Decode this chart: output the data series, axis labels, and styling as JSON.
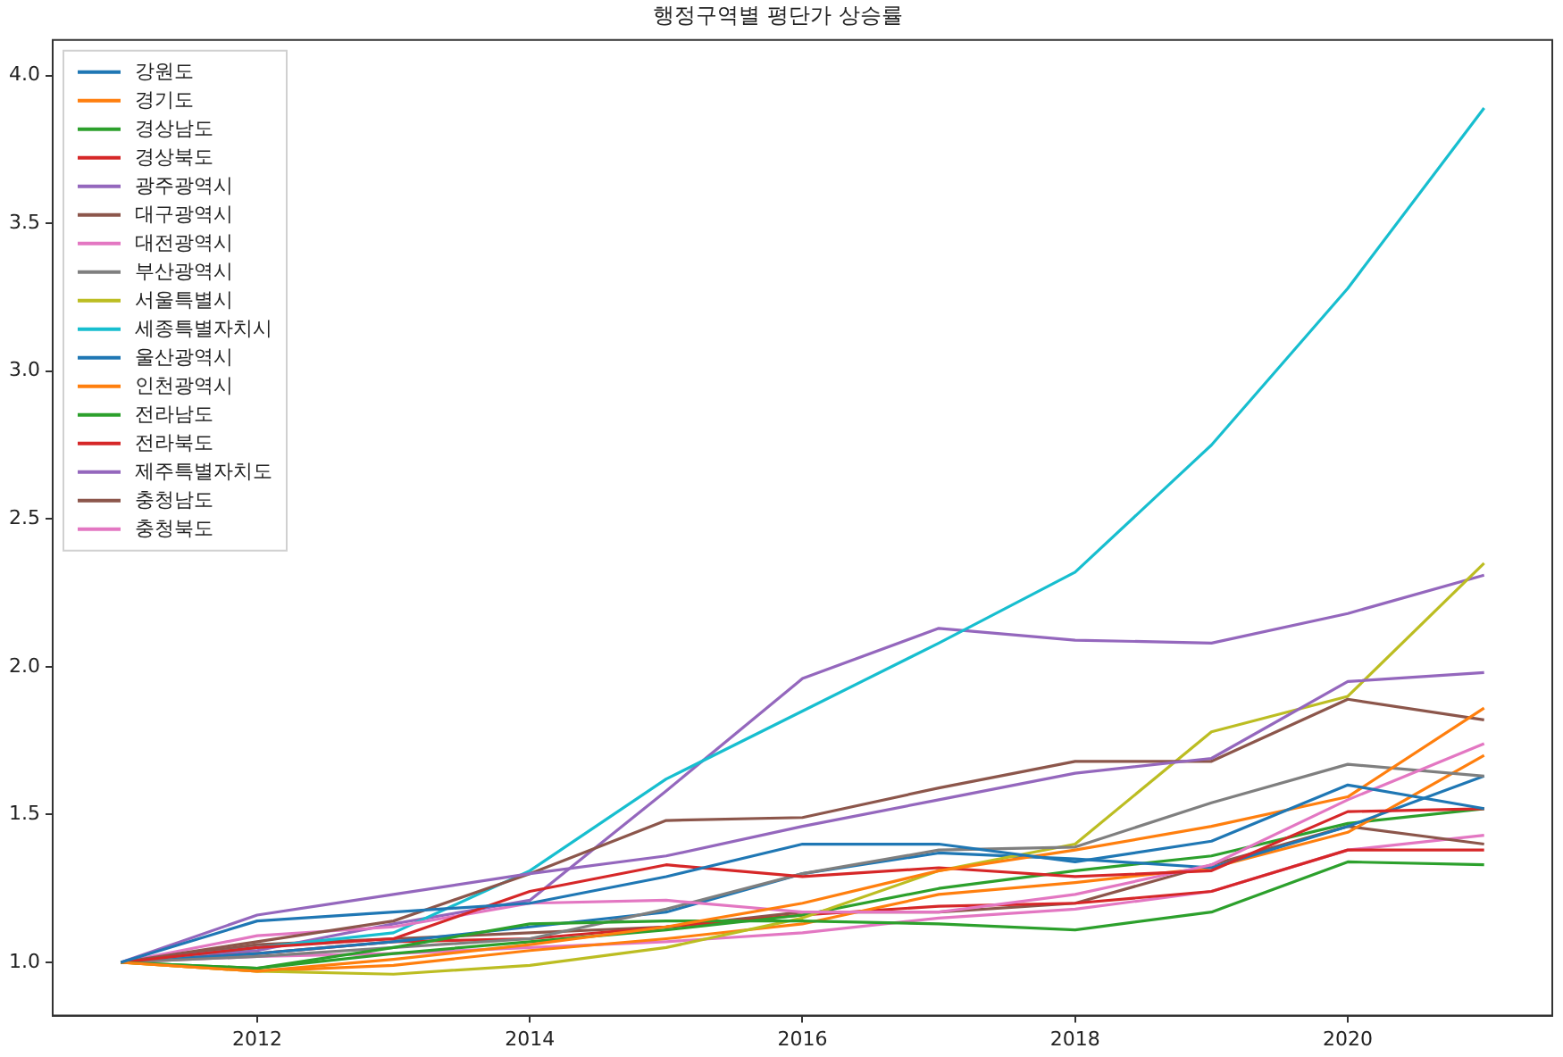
{
  "chart_data": {
    "type": "line",
    "title": "행정구역별 평단가 상승률",
    "x": [
      2011,
      2012,
      2013,
      2014,
      2015,
      2016,
      2017,
      2018,
      2019,
      2020,
      2021
    ],
    "xlim": [
      2010.5,
      2021.5
    ],
    "xticks": [
      2012,
      2014,
      2016,
      2018,
      2020
    ],
    "ylim": [
      0.82,
      4.12
    ],
    "yticks": [
      {
        "value": 1,
        "label": "1.0"
      },
      {
        "value": 1.5,
        "label": "1.5"
      },
      {
        "value": 2,
        "label": "2.0"
      },
      {
        "value": 2.5,
        "label": "2.5"
      },
      {
        "value": 3,
        "label": "3.0"
      },
      {
        "value": 3.5,
        "label": "3.5"
      },
      {
        "value": 4,
        "label": "4.0"
      }
    ],
    "grid": false,
    "legend": "top left",
    "marker": "none",
    "line_style": "solid",
    "series": [
      {
        "name": "강원도",
        "color": "#1f77b4",
        "values": [
          1.0,
          1.14,
          1.17,
          1.2,
          1.29,
          1.4,
          1.4,
          1.34,
          1.41,
          1.6,
          1.52
        ]
      },
      {
        "name": "경기도",
        "color": "#ff7f0e",
        "values": [
          1.0,
          0.97,
          1.01,
          1.06,
          1.12,
          1.2,
          1.31,
          1.38,
          1.46,
          1.56,
          1.86
        ]
      },
      {
        "name": "경상남도",
        "color": "#2ca02c",
        "values": [
          1.0,
          0.98,
          1.05,
          1.13,
          1.14,
          1.14,
          1.13,
          1.11,
          1.17,
          1.34,
          1.33
        ]
      },
      {
        "name": "경상북도",
        "color": "#d62728",
        "values": [
          1.0,
          1.05,
          1.08,
          1.24,
          1.33,
          1.29,
          1.32,
          1.29,
          1.31,
          1.51,
          1.52
        ]
      },
      {
        "name": "광주광역시",
        "color": "#9467bd",
        "values": [
          1.0,
          1.16,
          1.23,
          1.3,
          1.36,
          1.46,
          1.55,
          1.64,
          1.69,
          1.95,
          1.98
        ]
      },
      {
        "name": "대구광역시",
        "color": "#8c564b",
        "values": [
          1.0,
          1.07,
          1.14,
          1.3,
          1.48,
          1.49,
          1.59,
          1.68,
          1.68,
          1.89,
          1.82
        ]
      },
      {
        "name": "대전광역시",
        "color": "#e377c2",
        "values": [
          1.0,
          1.09,
          1.12,
          1.2,
          1.21,
          1.17,
          1.17,
          1.23,
          1.33,
          1.55,
          1.74
        ]
      },
      {
        "name": "부산광역시",
        "color": "#7f7f7f",
        "values": [
          1.0,
          1.02,
          1.05,
          1.08,
          1.18,
          1.3,
          1.38,
          1.39,
          1.54,
          1.67,
          1.63
        ]
      },
      {
        "name": "서울특별시",
        "color": "#bcbd22",
        "values": [
          1.0,
          0.97,
          0.96,
          0.99,
          1.05,
          1.15,
          1.31,
          1.4,
          1.78,
          1.9,
          2.35
        ]
      },
      {
        "name": "세종특별자치시",
        "color": "#17becf",
        "values": [
          1.0,
          1.05,
          1.1,
          1.31,
          1.62,
          1.85,
          2.08,
          2.32,
          2.75,
          3.28,
          3.89
        ]
      },
      {
        "name": "울산광역시",
        "color": "#1f77b4",
        "values": [
          1.0,
          1.03,
          1.07,
          1.12,
          1.17,
          1.3,
          1.37,
          1.35,
          1.32,
          1.46,
          1.63
        ]
      },
      {
        "name": "인천광역시",
        "color": "#ff7f0e",
        "values": [
          1.0,
          0.97,
          0.99,
          1.04,
          1.08,
          1.13,
          1.23,
          1.27,
          1.32,
          1.44,
          1.7
        ]
      },
      {
        "name": "전라남도",
        "color": "#2ca02c",
        "values": [
          1.0,
          0.98,
          1.03,
          1.07,
          1.11,
          1.16,
          1.25,
          1.31,
          1.36,
          1.47,
          1.52
        ]
      },
      {
        "name": "전라북도",
        "color": "#d62728",
        "values": [
          1.0,
          1.03,
          1.07,
          1.08,
          1.12,
          1.16,
          1.19,
          1.2,
          1.24,
          1.38,
          1.38
        ]
      },
      {
        "name": "제주특별자치도",
        "color": "#9467bd",
        "values": [
          1.0,
          1.04,
          1.13,
          1.21,
          1.58,
          1.96,
          2.13,
          2.09,
          2.08,
          2.18,
          2.31
        ]
      },
      {
        "name": "충청남도",
        "color": "#8c564b",
        "values": [
          1.0,
          1.06,
          1.08,
          1.1,
          1.12,
          1.17,
          1.17,
          1.2,
          1.33,
          1.46,
          1.4
        ]
      },
      {
        "name": "충청북도",
        "color": "#e377c2",
        "values": [
          1.0,
          1.02,
          1.03,
          1.05,
          1.07,
          1.1,
          1.15,
          1.18,
          1.24,
          1.38,
          1.43
        ]
      }
    ]
  }
}
